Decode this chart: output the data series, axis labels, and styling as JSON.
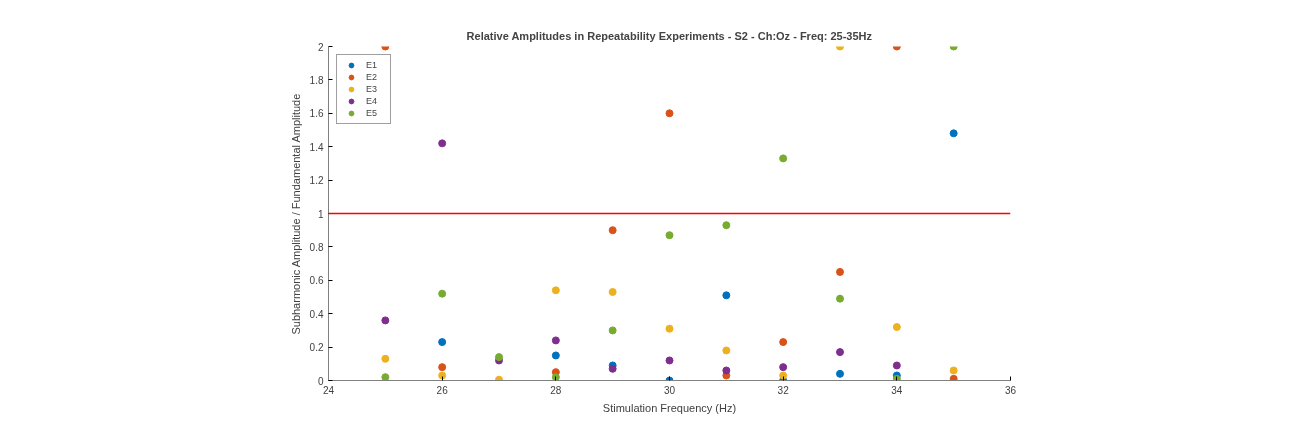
{
  "chart_data": {
    "type": "scatter",
    "title": "Relative Amplitudes in Repeatability Experiments - S2 - Ch:Oz - Freq: 25-35Hz",
    "xlabel": "Stimulation Frequency (Hz)",
    "ylabel": "Subharmonic Amplitude / Fundamental Amplitude",
    "x": [
      25,
      26,
      27,
      28,
      29,
      30,
      31,
      32,
      33,
      34,
      35
    ],
    "series": [
      {
        "name": "E1",
        "color": "#0072bd",
        "values": [
          null,
          0.23,
          null,
          0.15,
          0.09,
          0.0,
          0.51,
          0.0,
          0.04,
          0.03,
          1.48
        ]
      },
      {
        "name": "E2",
        "color": "#d95319",
        "values": [
          2.0,
          0.08,
          null,
          0.05,
          0.9,
          1.6,
          0.03,
          0.23,
          0.65,
          2.0,
          0.01
        ]
      },
      {
        "name": "E3",
        "color": "#edb120",
        "values": [
          0.13,
          0.03,
          0.005,
          0.54,
          0.53,
          0.31,
          0.18,
          0.03,
          2.0,
          0.32,
          0.06
        ]
      },
      {
        "name": "E4",
        "color": "#7e2f8e",
        "values": [
          0.36,
          1.42,
          0.12,
          0.24,
          0.07,
          0.12,
          0.06,
          0.08,
          0.17,
          0.09,
          null
        ]
      },
      {
        "name": "E5",
        "color": "#77ac30",
        "values": [
          0.02,
          0.52,
          0.14,
          0.02,
          0.3,
          0.87,
          0.93,
          1.33,
          0.49,
          0.01,
          2.0
        ]
      }
    ],
    "xlim": [
      24,
      36
    ],
    "xticks": [
      24,
      26,
      28,
      30,
      32,
      34,
      36
    ],
    "ylim": [
      0,
      2
    ],
    "yticks": [
      0,
      0.2,
      0.4,
      0.6,
      0.8,
      1,
      1.2,
      1.4,
      1.6,
      1.8,
      2
    ],
    "ref_lines": [
      {
        "axis": "y",
        "value": 1,
        "color": "#ff0000"
      }
    ],
    "marker": "circle",
    "legend": "top left",
    "grid": false
  }
}
